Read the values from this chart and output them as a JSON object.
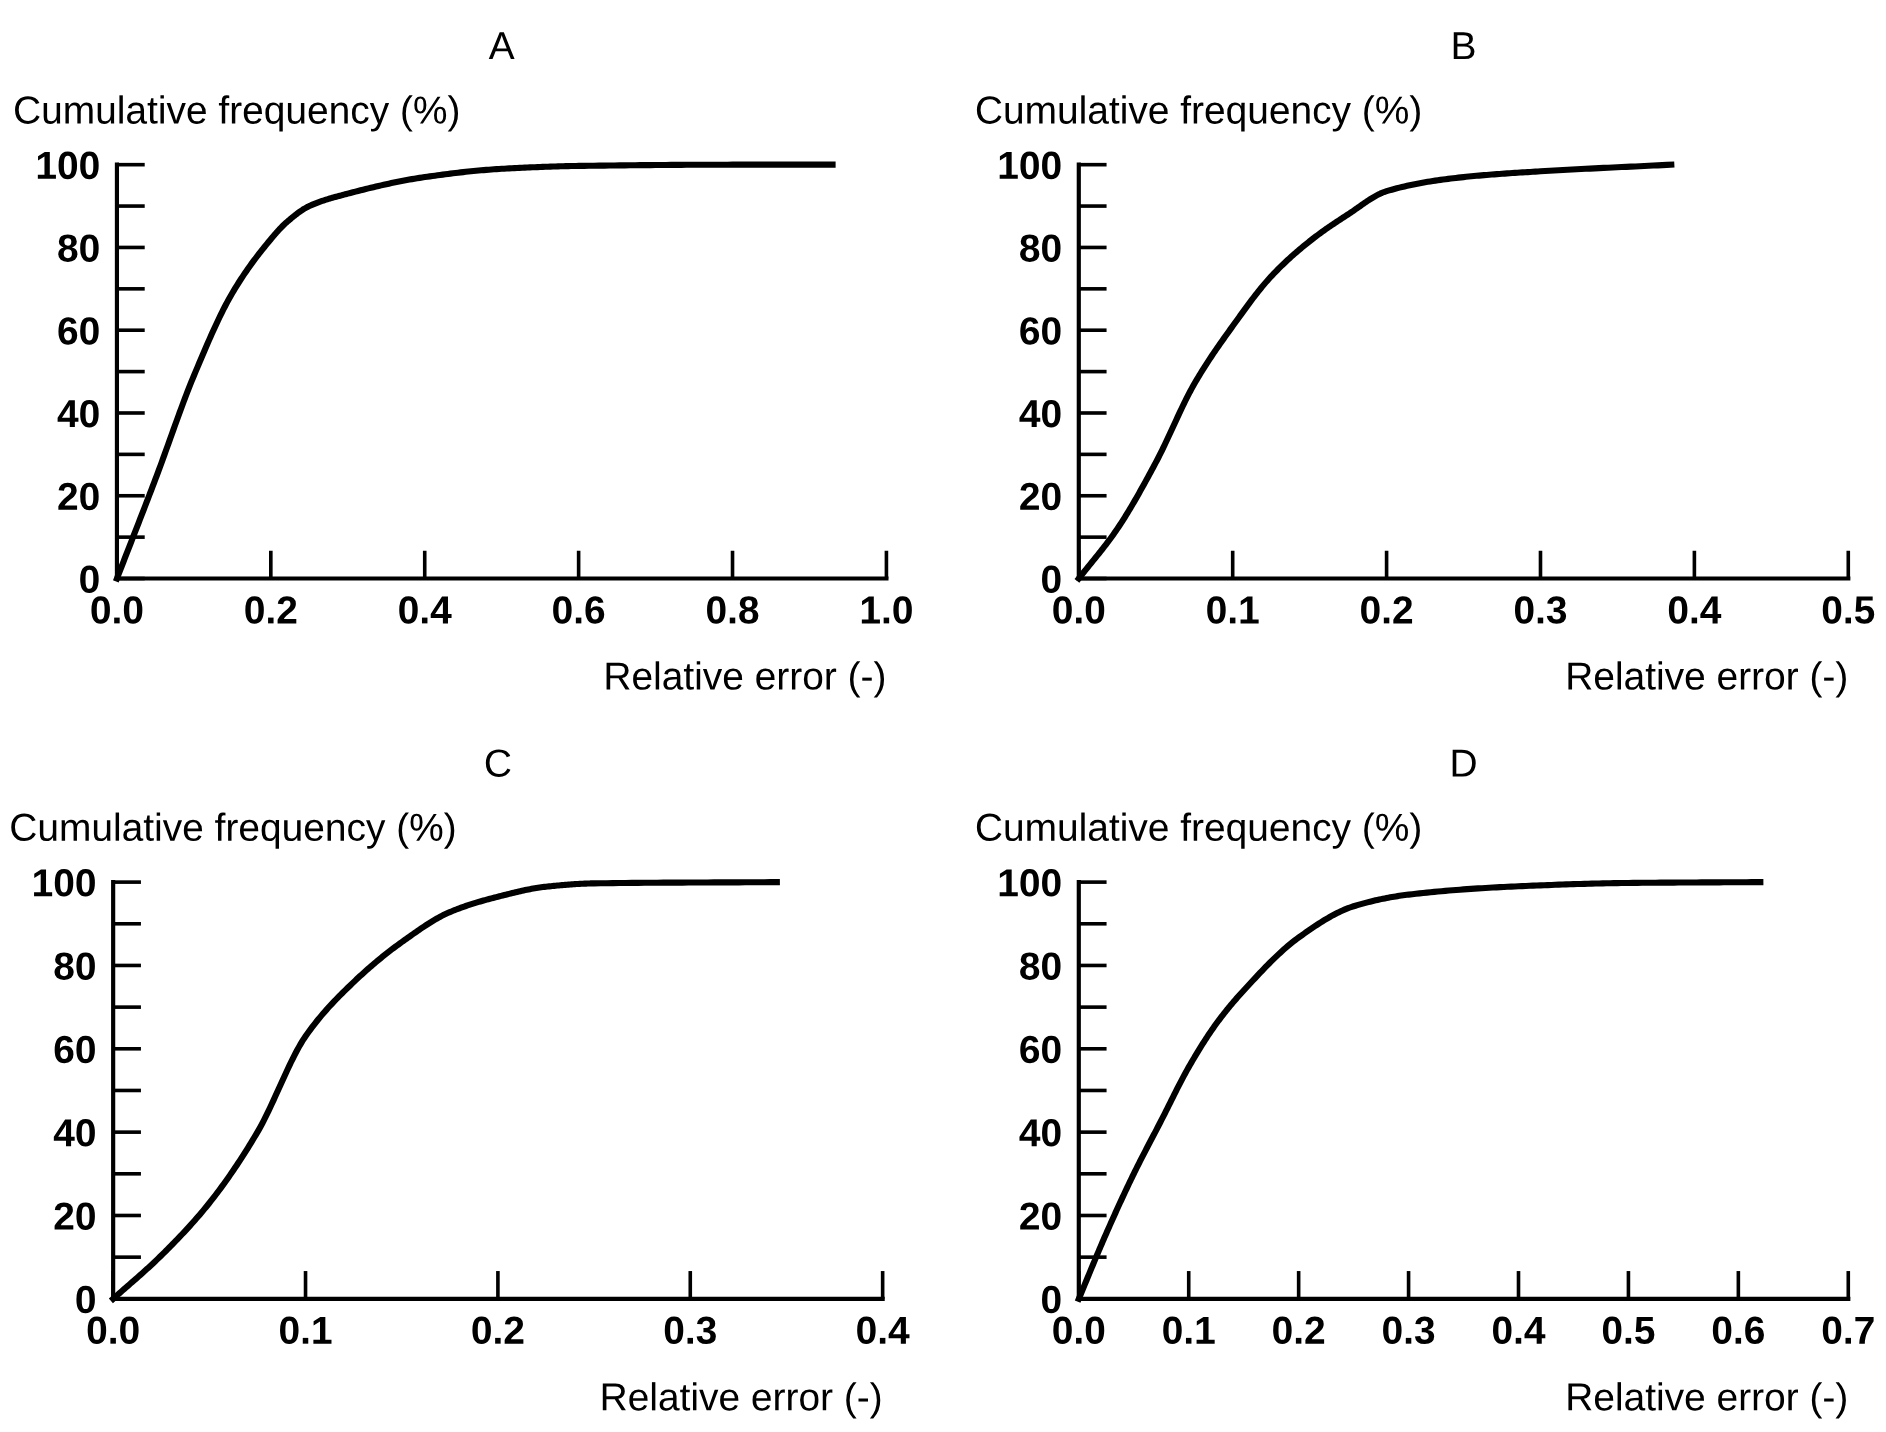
{
  "chart_data": [
    {
      "type": "line",
      "title": "A",
      "ylabel": "Cumulative frequency (%)",
      "xlabel": "Relative error (-)",
      "xlim": [
        0,
        1.0
      ],
      "xticks": [
        {
          "value": 0,
          "label": "0.0"
        },
        {
          "value": 0.2,
          "label": "0.2"
        },
        {
          "value": 0.4,
          "label": "0.4"
        },
        {
          "value": 0.6,
          "label": "0.6"
        },
        {
          "value": 0.8,
          "label": "0.8"
        },
        {
          "value": 1.0,
          "label": "1.0"
        }
      ],
      "ylim": [
        0,
        100
      ],
      "yticks": [
        0,
        {
          "value": 10,
          "label": null
        },
        20,
        {
          "value": 30,
          "label": null
        },
        40,
        {
          "value": 50,
          "label": null
        },
        60,
        {
          "value": 70,
          "label": null
        },
        80,
        {
          "value": 90,
          "label": null
        },
        100
      ],
      "grid": false,
      "legend": false,
      "marker": "none",
      "line_style": "solid",
      "series": [
        {
          "color": "#000000",
          "x": [
            0,
            0.05,
            0.1,
            0.15,
            0.2,
            0.22,
            0.25,
            0.3,
            0.4,
            0.5,
            0.6,
            0.8,
            0.93
          ],
          "values": [
            0,
            24,
            49,
            69,
            82,
            86,
            90,
            93,
            97,
            99,
            99.7,
            100,
            100
          ]
        }
      ]
    },
    {
      "type": "line",
      "title": "B",
      "ylabel": "Cumulative frequency (%)",
      "xlabel": "Relative error (-)",
      "xlim": [
        0,
        0.5
      ],
      "xticks": [
        {
          "value": 0,
          "label": "0.0"
        },
        0.1,
        0.2,
        0.3,
        0.4,
        0.5
      ],
      "ylim": [
        0,
        100
      ],
      "yticks": [
        0,
        {
          "value": 10,
          "label": null
        },
        20,
        {
          "value": 30,
          "label": null
        },
        40,
        {
          "value": 50,
          "label": null
        },
        60,
        {
          "value": 70,
          "label": null
        },
        80,
        {
          "value": 90,
          "label": null
        },
        100
      ],
      "grid": false,
      "legend": false,
      "marker": "none",
      "line_style": "solid",
      "series": [
        {
          "color": "#000000",
          "x": [
            0,
            0.025,
            0.05,
            0.075,
            0.1,
            0.125,
            0.15,
            0.175,
            0.2,
            0.25,
            0.3,
            0.385
          ],
          "values": [
            0,
            12,
            28,
            47,
            61,
            73,
            81.5,
            88,
            93.6,
            97,
            98.4,
            100
          ]
        }
      ]
    },
    {
      "type": "line",
      "title": "C",
      "ylabel": "Cumulative frequency (%)",
      "xlabel": "Relative error (-)",
      "xlim": [
        0,
        0.4
      ],
      "xticks": [
        {
          "value": 0,
          "label": "0.0"
        },
        0.1,
        0.2,
        0.3,
        0.4
      ],
      "ylim": [
        0,
        100
      ],
      "yticks": [
        0,
        {
          "value": 10,
          "label": null
        },
        20,
        {
          "value": 30,
          "label": null
        },
        40,
        {
          "value": 50,
          "label": null
        },
        60,
        {
          "value": 70,
          "label": null
        },
        80,
        {
          "value": 90,
          "label": null
        },
        100
      ],
      "grid": false,
      "legend": false,
      "marker": "none",
      "line_style": "solid",
      "series": [
        {
          "color": "#000000",
          "x": [
            0,
            0.025,
            0.05,
            0.075,
            0.1,
            0.125,
            0.15,
            0.175,
            0.2,
            0.225,
            0.25,
            0.345
          ],
          "values": [
            0,
            10.4,
            23,
            40,
            63,
            76,
            85.6,
            92.8,
            96.5,
            98.9,
            99.7,
            100
          ]
        }
      ]
    },
    {
      "type": "line",
      "title": "D",
      "ylabel": "Cumulative frequency (%)",
      "xlabel": "Relative error (-)",
      "xlim": [
        0,
        0.7
      ],
      "xticks": [
        {
          "value": 0,
          "label": "0.0"
        },
        0.1,
        0.2,
        0.3,
        0.4,
        0.5,
        0.6,
        0.7
      ],
      "ylim": [
        0,
        100
      ],
      "yticks": [
        0,
        {
          "value": 10,
          "label": null
        },
        20,
        {
          "value": 30,
          "label": null
        },
        40,
        {
          "value": 50,
          "label": null
        },
        60,
        {
          "value": 70,
          "label": null
        },
        80,
        {
          "value": 90,
          "label": null
        },
        100
      ],
      "grid": false,
      "legend": false,
      "marker": "none",
      "line_style": "solid",
      "series": [
        {
          "color": "#000000",
          "x": [
            0,
            0.025,
            0.05,
            0.075,
            0.1,
            0.125,
            0.15,
            0.2,
            0.25,
            0.3,
            0.4,
            0.5,
            0.62
          ],
          "values": [
            0,
            15.7,
            30,
            42.8,
            55.6,
            66,
            74,
            86.7,
            94.2,
            97,
            99,
            99.8,
            100
          ]
        }
      ]
    }
  ]
}
